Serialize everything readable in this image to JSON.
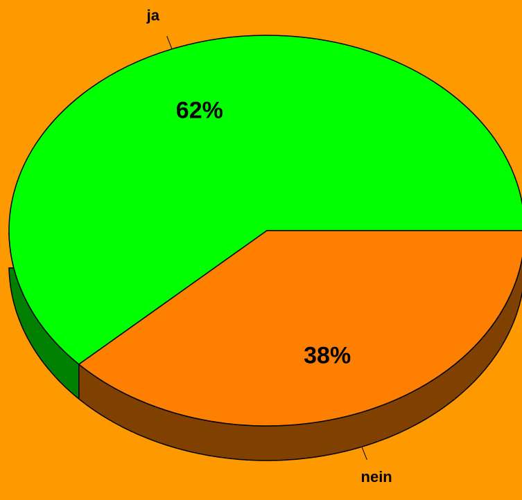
{
  "chart_data": {
    "type": "pie",
    "categories": [
      "ja",
      "nein"
    ],
    "values": [
      62,
      38
    ],
    "value_labels": [
      "62%",
      "38%"
    ],
    "colors": [
      "#00ff00",
      "#ff8000"
    ]
  }
}
